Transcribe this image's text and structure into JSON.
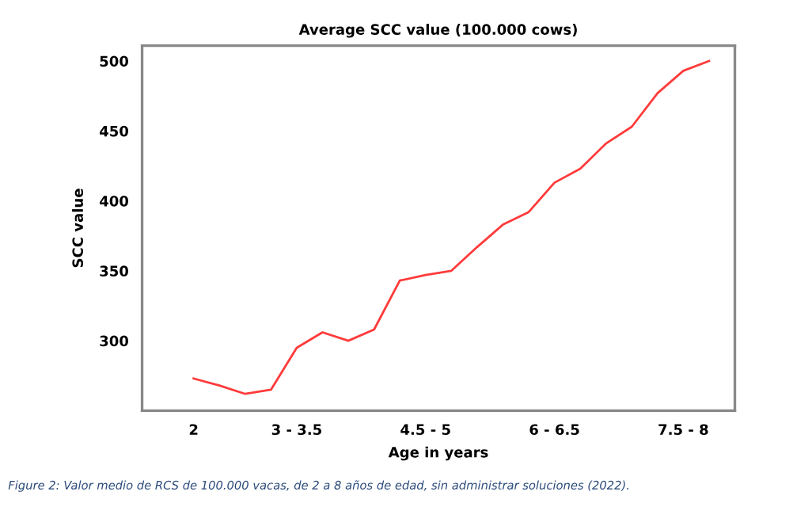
{
  "chart_data": {
    "type": "line",
    "title": "Average SCC value (100.000 cows)",
    "xlabel": "Age in years",
    "ylabel": "SCC value",
    "categories": [
      "2",
      null,
      null,
      null,
      "3 - 3.5",
      null,
      null,
      null,
      null,
      "4.5 - 5",
      null,
      null,
      null,
      null,
      "6 - 6.5",
      null,
      null,
      null,
      null,
      "7.5 - 8",
      null
    ],
    "series": [
      {
        "color": "#ff3b3b",
        "values": [
          273,
          268,
          262,
          265,
          295,
          306,
          300,
          308,
          343,
          347,
          350,
          367,
          383,
          392,
          413,
          423,
          441,
          453,
          477,
          493,
          500
        ]
      }
    ],
    "ylim": [
      250,
      511
    ],
    "yticks": [
      300,
      350,
      400,
      450,
      500
    ],
    "grid": false,
    "legend": false,
    "marker": "none",
    "line_style": "solid",
    "annotations": [
      "Figure 2: Valor medio de RCS de 100.000 vacas, de 2 a 8 años de edad, sin administrar soluciones (2022)."
    ]
  }
}
